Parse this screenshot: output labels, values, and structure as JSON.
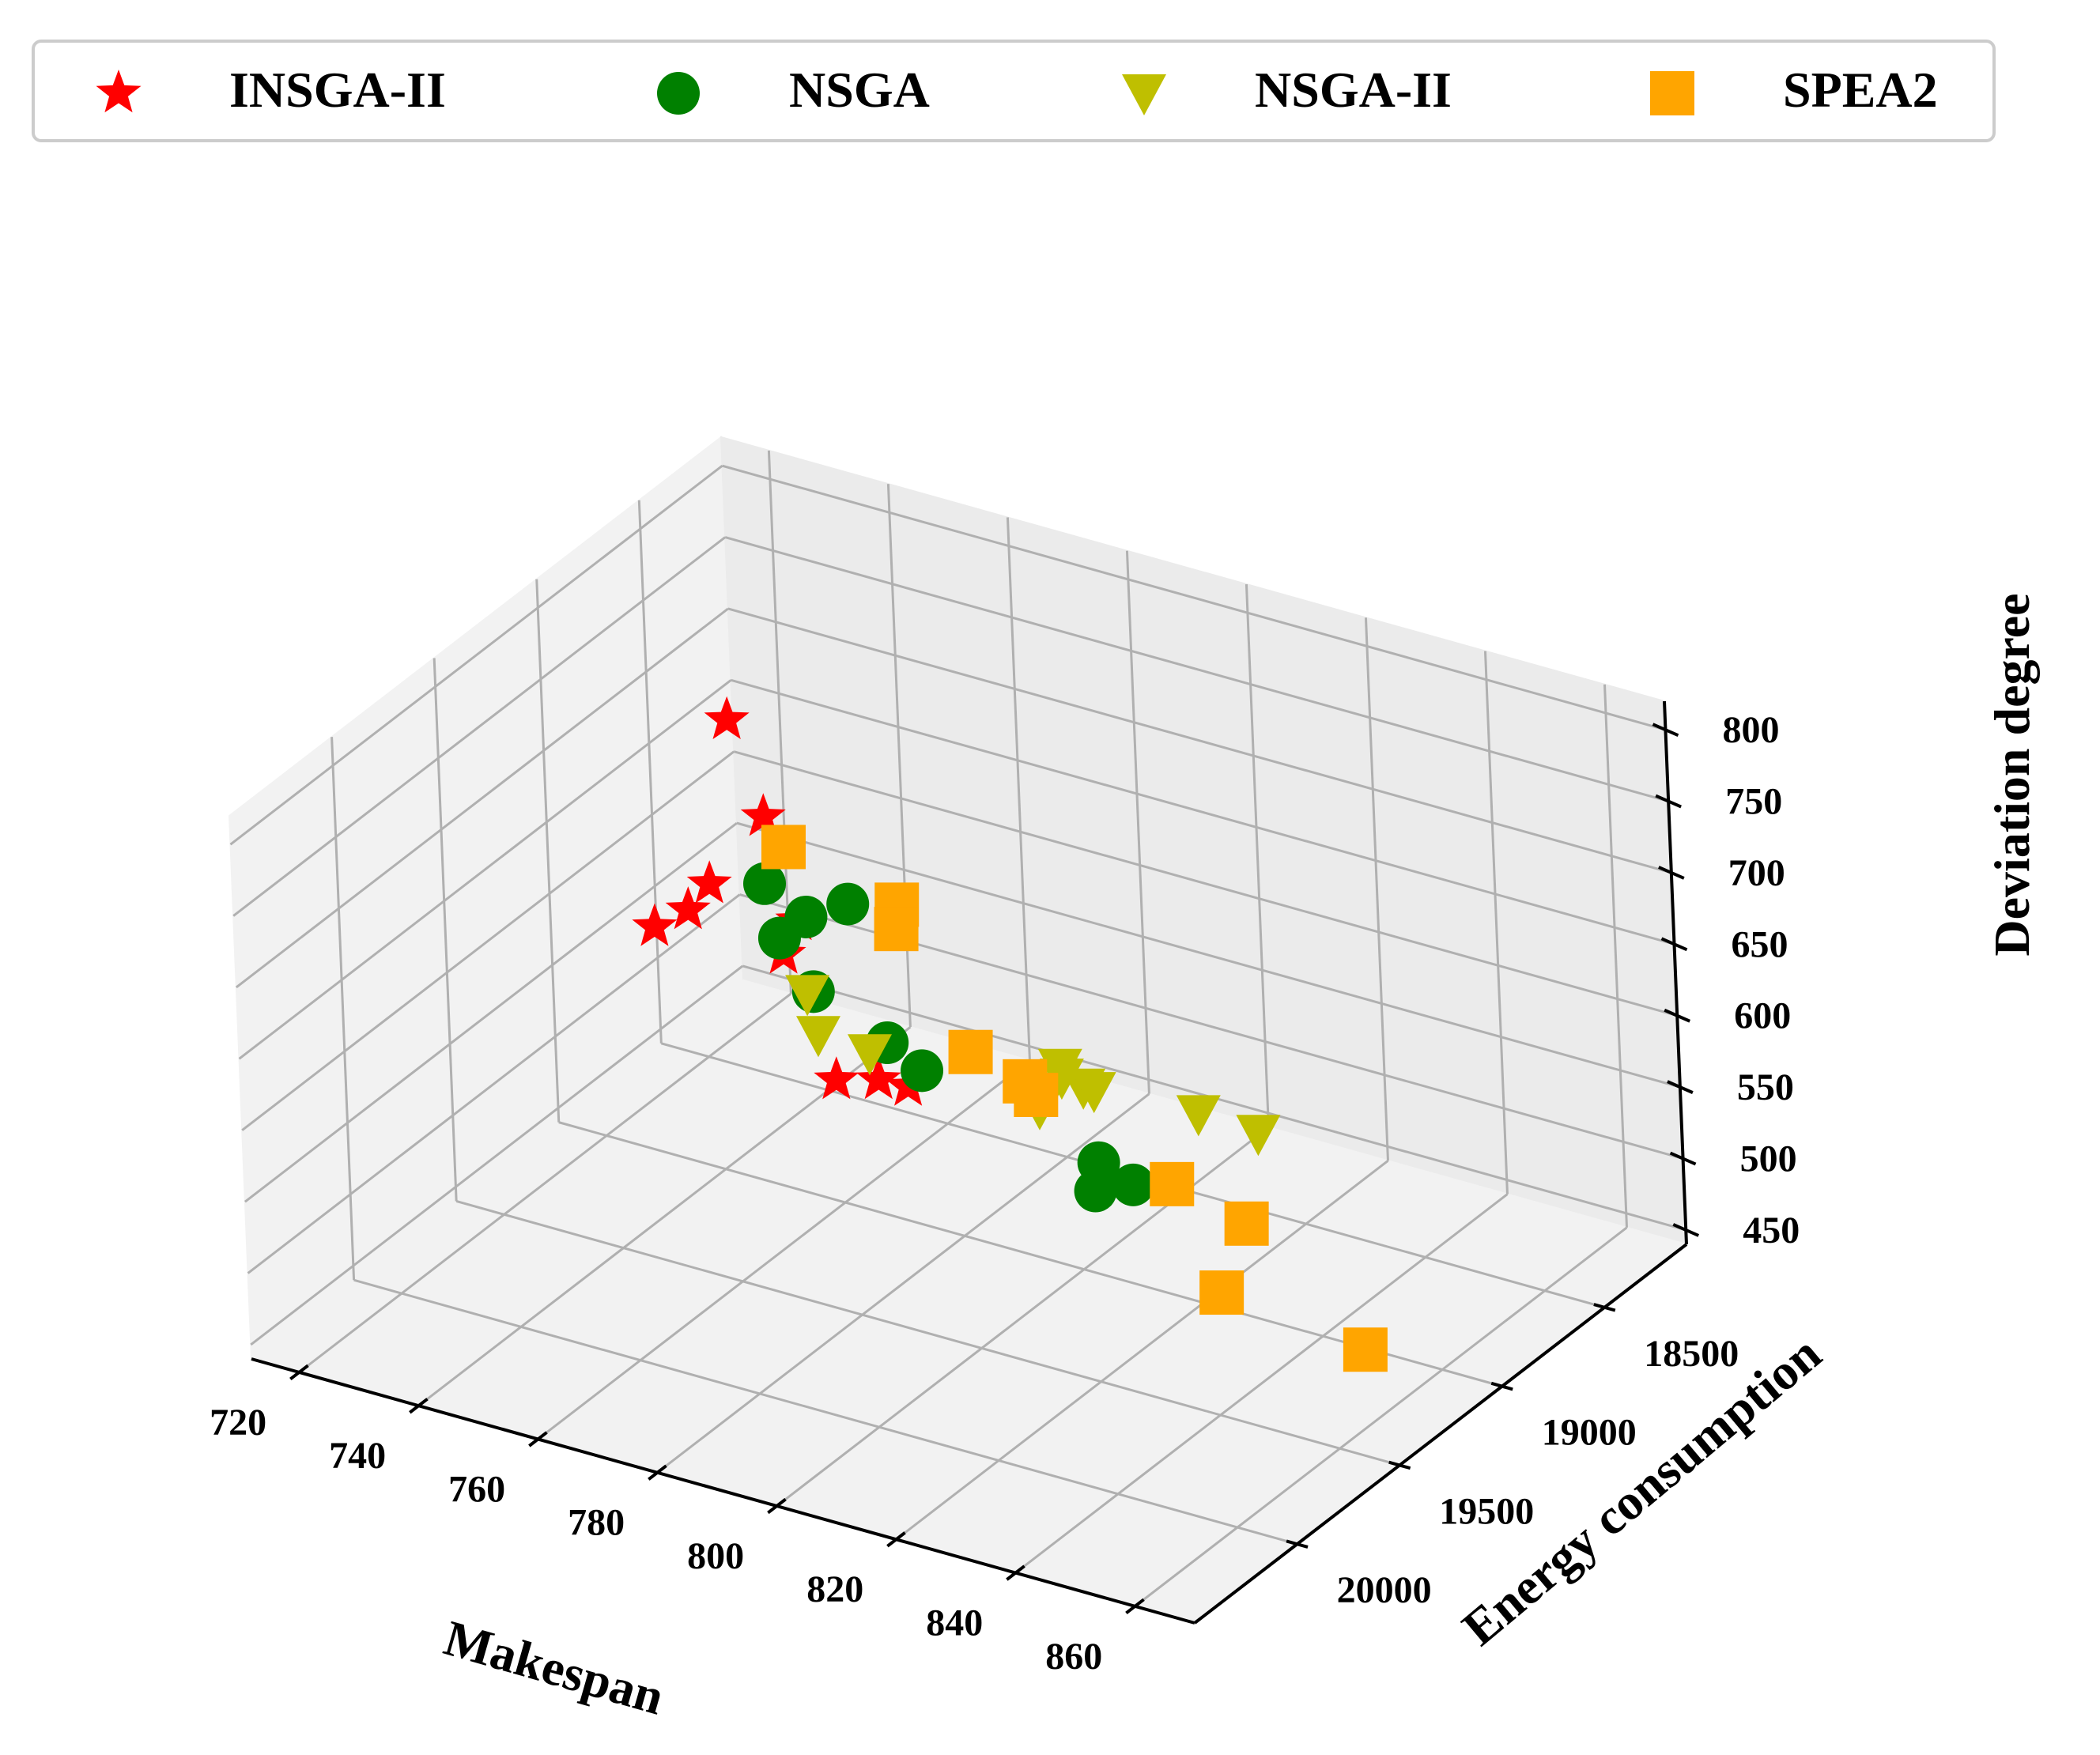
{
  "chart_data": {
    "type": "scatter",
    "dimensions": 3,
    "title": "",
    "xlabel": "Makespan",
    "ylabel": "Energy consumption",
    "zlabel": "Deviation degree",
    "xlim": [
      712,
      870
    ],
    "ylim": [
      18100,
      20500
    ],
    "zlim": [
      440,
      820
    ],
    "xticks": [
      720,
      740,
      760,
      780,
      800,
      820,
      840,
      860
    ],
    "yticks": [
      18500,
      19000,
      19500,
      20000
    ],
    "zticks": [
      450,
      500,
      550,
      600,
      650,
      700,
      750,
      800
    ],
    "grid": true,
    "legend": {
      "position": "top",
      "columns": 4
    },
    "series": [
      {
        "name": "INSGA-II",
        "marker": "star",
        "color": "#ff0000",
        "points": [
          {
            "x": 735,
            "y": 18770,
            "z": 723
          },
          {
            "x": 738,
            "y": 18700,
            "z": 651
          },
          {
            "x": 732,
            "y": 18800,
            "z": 608
          },
          {
            "x": 730,
            "y": 18850,
            "z": 593
          },
          {
            "x": 726,
            "y": 18900,
            "z": 582
          },
          {
            "x": 741,
            "y": 18640,
            "z": 575
          },
          {
            "x": 738,
            "y": 18630,
            "z": 547
          },
          {
            "x": 745,
            "y": 18600,
            "z": 464
          },
          {
            "x": 745,
            "y": 18400,
            "z": 442
          },
          {
            "x": 741,
            "y": 18150,
            "z": 405
          }
        ]
      },
      {
        "name": "NSGA",
        "marker": "circle",
        "color": "#008000",
        "points": [
          {
            "x": 770,
            "y": 19600,
            "z": 741
          },
          {
            "x": 775,
            "y": 19550,
            "z": 718
          },
          {
            "x": 775,
            "y": 19350,
            "z": 705
          },
          {
            "x": 765,
            "y": 19400,
            "z": 675
          },
          {
            "x": 765,
            "y": 19250,
            "z": 621
          },
          {
            "x": 790,
            "y": 19450,
            "z": 617
          },
          {
            "x": 770,
            "y": 19050,
            "z": 569
          },
          {
            "x": 825,
            "y": 19450,
            "z": 578
          },
          {
            "x": 815,
            "y": 19350,
            "z": 551
          },
          {
            "x": 805,
            "y": 19050,
            "z": 526
          }
        ]
      },
      {
        "name": "NSGA-II",
        "marker": "triangle-down",
        "color": "#bfbf00",
        "points": [
          {
            "x": 755,
            "y": 19000,
            "z": 580
          },
          {
            "x": 753,
            "y": 18900,
            "z": 538
          },
          {
            "x": 758,
            "y": 18800,
            "z": 520
          },
          {
            "x": 790,
            "y": 18900,
            "z": 530
          },
          {
            "x": 785,
            "y": 18650,
            "z": 518
          },
          {
            "x": 783,
            "y": 18600,
            "z": 517
          },
          {
            "x": 785,
            "y": 18550,
            "z": 500
          },
          {
            "x": 785,
            "y": 18500,
            "z": 492
          },
          {
            "x": 790,
            "y": 18150,
            "z": 443
          },
          {
            "x": 800,
            "y": 18150,
            "z": 441
          }
        ]
      },
      {
        "name": "SPEA2",
        "marker": "square",
        "color": "#ffa500",
        "points": [
          {
            "x": 786,
            "y": 19950,
            "z": 824
          },
          {
            "x": 803,
            "y": 19900,
            "z": 798
          },
          {
            "x": 792,
            "y": 19600,
            "z": 735
          },
          {
            "x": 793,
            "y": 19300,
            "z": 617
          },
          {
            "x": 802,
            "y": 19300,
            "z": 607
          },
          {
            "x": 802,
            "y": 19250,
            "z": 592
          },
          {
            "x": 828,
            "y": 19350,
            "z": 571
          },
          {
            "x": 850,
            "y": 19750,
            "z": 565
          },
          {
            "x": 835,
            "y": 19200,
            "z": 535
          },
          {
            "x": 865,
            "y": 19500,
            "z": 515
          }
        ]
      }
    ]
  }
}
